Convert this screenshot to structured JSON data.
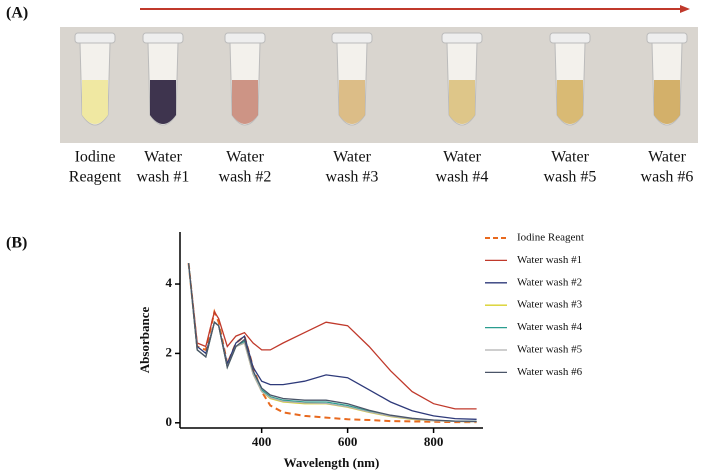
{
  "panel_a": {
    "label": "(A)",
    "tubes": [
      {
        "label": [
          "Iodine",
          "Reagent"
        ],
        "color": "#efe79a"
      },
      {
        "label": [
          "Water",
          "wash #1"
        ],
        "color": "#2a1f3d"
      },
      {
        "label": [
          "Water",
          "wash #2"
        ],
        "color": "#c98a7a"
      },
      {
        "label": [
          "Water",
          "wash #3"
        ],
        "color": "#d9b77c"
      },
      {
        "label": [
          "Water",
          "wash #4"
        ],
        "color": "#dcc17e"
      },
      {
        "label": [
          "Water",
          "wash #5"
        ],
        "color": "#d6b467"
      },
      {
        "label": [
          "Water",
          "wash #6"
        ],
        "color": "#cfa85c"
      }
    ]
  },
  "panel_b": {
    "label": "(B)"
  },
  "chart_data": {
    "type": "line",
    "x_label": "Wavelength (nm)",
    "y_label": "Absorbance",
    "xlim": [
      210,
      915
    ],
    "ylim": [
      -0.15,
      5.5
    ],
    "xticks": [
      400,
      600,
      800
    ],
    "yticks": [
      0,
      2,
      4
    ],
    "x": [
      230,
      250,
      270,
      290,
      300,
      320,
      340,
      360,
      380,
      400,
      420,
      450,
      500,
      550,
      600,
      650,
      700,
      750,
      800,
      850,
      900
    ],
    "series": [
      {
        "name": "Iodine Reagent",
        "color": "#e8691e",
        "dashed": true,
        "values": [
          4.6,
          2.2,
          2.1,
          3.2,
          2.9,
          1.7,
          2.3,
          2.5,
          1.6,
          0.9,
          0.5,
          0.3,
          0.2,
          0.15,
          0.1,
          0.08,
          0.05,
          0.04,
          0.03,
          0.02,
          0.02
        ]
      },
      {
        "name": "Water wash #1",
        "color": "#c0392b",
        "values": [
          4.6,
          2.3,
          2.2,
          3.2,
          3.0,
          2.2,
          2.5,
          2.6,
          2.3,
          2.1,
          2.1,
          2.3,
          2.6,
          2.9,
          2.8,
          2.2,
          1.5,
          0.9,
          0.55,
          0.4,
          0.4
        ]
      },
      {
        "name": "Water wash #2",
        "color": "#2e3a7a",
        "values": [
          4.6,
          2.2,
          2.0,
          2.9,
          2.8,
          1.7,
          2.3,
          2.5,
          1.6,
          1.2,
          1.1,
          1.1,
          1.2,
          1.38,
          1.3,
          0.95,
          0.6,
          0.35,
          0.2,
          0.12,
          0.1
        ]
      },
      {
        "name": "Water wash #3",
        "color": "#d8d02a",
        "values": [
          4.6,
          2.1,
          1.9,
          2.9,
          2.8,
          1.6,
          2.2,
          2.3,
          1.4,
          0.9,
          0.7,
          0.6,
          0.55,
          0.55,
          0.45,
          0.3,
          0.18,
          0.1,
          0.06,
          0.04,
          0.03
        ]
      },
      {
        "name": "Water wash #4",
        "color": "#2a9d8f",
        "values": [
          4.6,
          2.1,
          1.9,
          2.9,
          2.8,
          1.6,
          2.2,
          2.35,
          1.45,
          0.95,
          0.75,
          0.65,
          0.6,
          0.6,
          0.5,
          0.33,
          0.2,
          0.12,
          0.07,
          0.05,
          0.04
        ]
      },
      {
        "name": "Water wash #5",
        "color": "#b0b0b0",
        "values": [
          4.6,
          2.1,
          1.9,
          2.9,
          2.8,
          1.6,
          2.2,
          2.3,
          1.4,
          0.9,
          0.72,
          0.62,
          0.57,
          0.56,
          0.46,
          0.31,
          0.19,
          0.11,
          0.06,
          0.04,
          0.03
        ]
      },
      {
        "name": "Water wash #6",
        "color": "#4a5568",
        "values": [
          4.6,
          2.1,
          1.9,
          2.9,
          2.8,
          1.6,
          2.2,
          2.4,
          1.5,
          1.0,
          0.8,
          0.7,
          0.65,
          0.65,
          0.55,
          0.36,
          0.22,
          0.13,
          0.08,
          0.05,
          0.04
        ]
      }
    ]
  }
}
